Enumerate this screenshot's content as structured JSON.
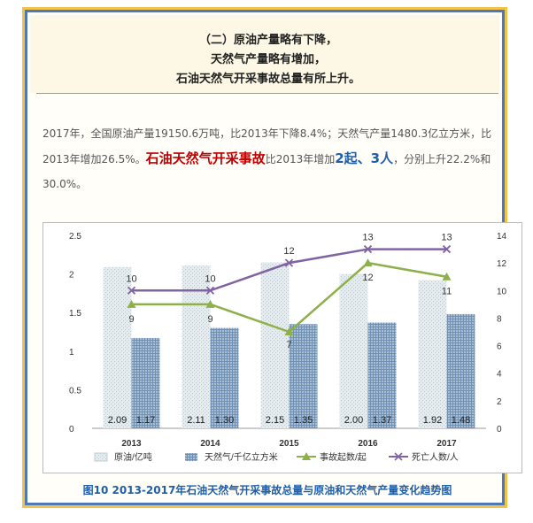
{
  "heading": {
    "line1": "（二）原油产量略有下降，",
    "line2": "天然气产量略有增加，",
    "line3": "石油天然气开采事故总量有所上升。"
  },
  "paragraph": {
    "part1": "2017年，全国原油产量19150.6万吨，比2013年下降8.4%；天然气产量1480.3亿立方米，比2013年增加26.5%。",
    "highlight_red": "石油天然气开采事故",
    "part2": "比2013年增加",
    "highlight_blue1": "2起、3人",
    "part3": "，分别上升22.2%和30.0%。"
  },
  "caption": "图10  2013-2017年石油天然气开采事故总量与原油和天然气产量变化趋势图",
  "chart_data": {
    "type": "bar",
    "categories": [
      "2013",
      "2014",
      "2015",
      "2016",
      "2017"
    ],
    "series": [
      {
        "name": "原油/亿吨",
        "kind": "bar",
        "axis": "left",
        "values": [
          2.09,
          2.11,
          2.15,
          2.0,
          1.92
        ],
        "labels": [
          "2.09",
          "2.11",
          "2.15",
          "2.00",
          "1.92"
        ],
        "color": "#dbe6ec"
      },
      {
        "name": "天然气/千亿立方米",
        "kind": "bar",
        "axis": "left",
        "values": [
          1.17,
          1.3,
          1.35,
          1.37,
          1.48
        ],
        "labels": [
          "1.17",
          "1.30",
          "1.35",
          "1.37",
          "1.48"
        ],
        "color": "#7f9fc0"
      },
      {
        "name": "事故起数/起",
        "kind": "line",
        "axis": "right",
        "values": [
          9,
          9,
          7,
          12,
          11
        ],
        "color": "#8db04a"
      },
      {
        "name": "死亡人数/人",
        "kind": "line",
        "axis": "right",
        "values": [
          10,
          10,
          12,
          13,
          13
        ],
        "color": "#8064a2"
      }
    ],
    "y_left": {
      "min": 0,
      "max": 2.5,
      "ticks": [
        "0",
        "0.5",
        "1",
        "1.5",
        "2",
        "2.5"
      ]
    },
    "y_right": {
      "min": 0,
      "max": 14,
      "ticks": [
        "0",
        "2",
        "4",
        "6",
        "8",
        "10",
        "12",
        "14"
      ]
    },
    "grid": false,
    "legend": "bottom"
  }
}
